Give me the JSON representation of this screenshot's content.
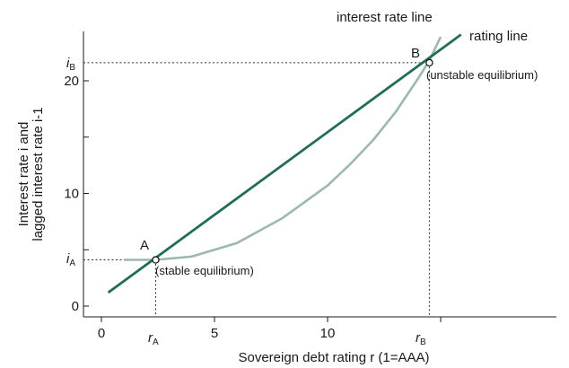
{
  "chart_data": {
    "type": "line",
    "xlabel": "Sovereign debt rating r (1=AAA)",
    "ylabel_line1": "Interest rate i and",
    "ylabel_line2": "lagged interest rate i-1",
    "xlim": [
      -1,
      20
    ],
    "ylim": [
      -0.5,
      24.5
    ],
    "xticks": [
      0,
      5,
      10
    ],
    "yticks": [
      0,
      10,
      20
    ],
    "grid": false,
    "series": [
      {
        "name": "rating line",
        "color": "#1f6e5a",
        "x": [
          0.3,
          15.9
        ],
        "y": [
          1.2,
          24.1
        ]
      },
      {
        "name": "interest rate line",
        "color": "#9cb9ae",
        "x": [
          1.0,
          2.4,
          4.0,
          6.0,
          8.0,
          10.0,
          11.0,
          12.0,
          13.0,
          14.0,
          14.5,
          15.0
        ],
        "y": [
          4.1,
          4.1,
          4.4,
          5.6,
          7.8,
          10.7,
          12.6,
          14.7,
          17.2,
          20.2,
          21.8,
          23.9
        ]
      }
    ],
    "annotations": {
      "A": {
        "label": "A",
        "note": "(stable equilibrium)",
        "x": 2.4,
        "y": 4.1,
        "r_label": "r",
        "r_sub": "A",
        "i_label": "i",
        "i_sub": "A"
      },
      "B": {
        "label": "B",
        "note": "(unstable equilibrium)",
        "x": 14.5,
        "y": 21.6,
        "r_label": "r",
        "r_sub": "B",
        "i_label": "i",
        "i_sub": "B"
      }
    }
  }
}
